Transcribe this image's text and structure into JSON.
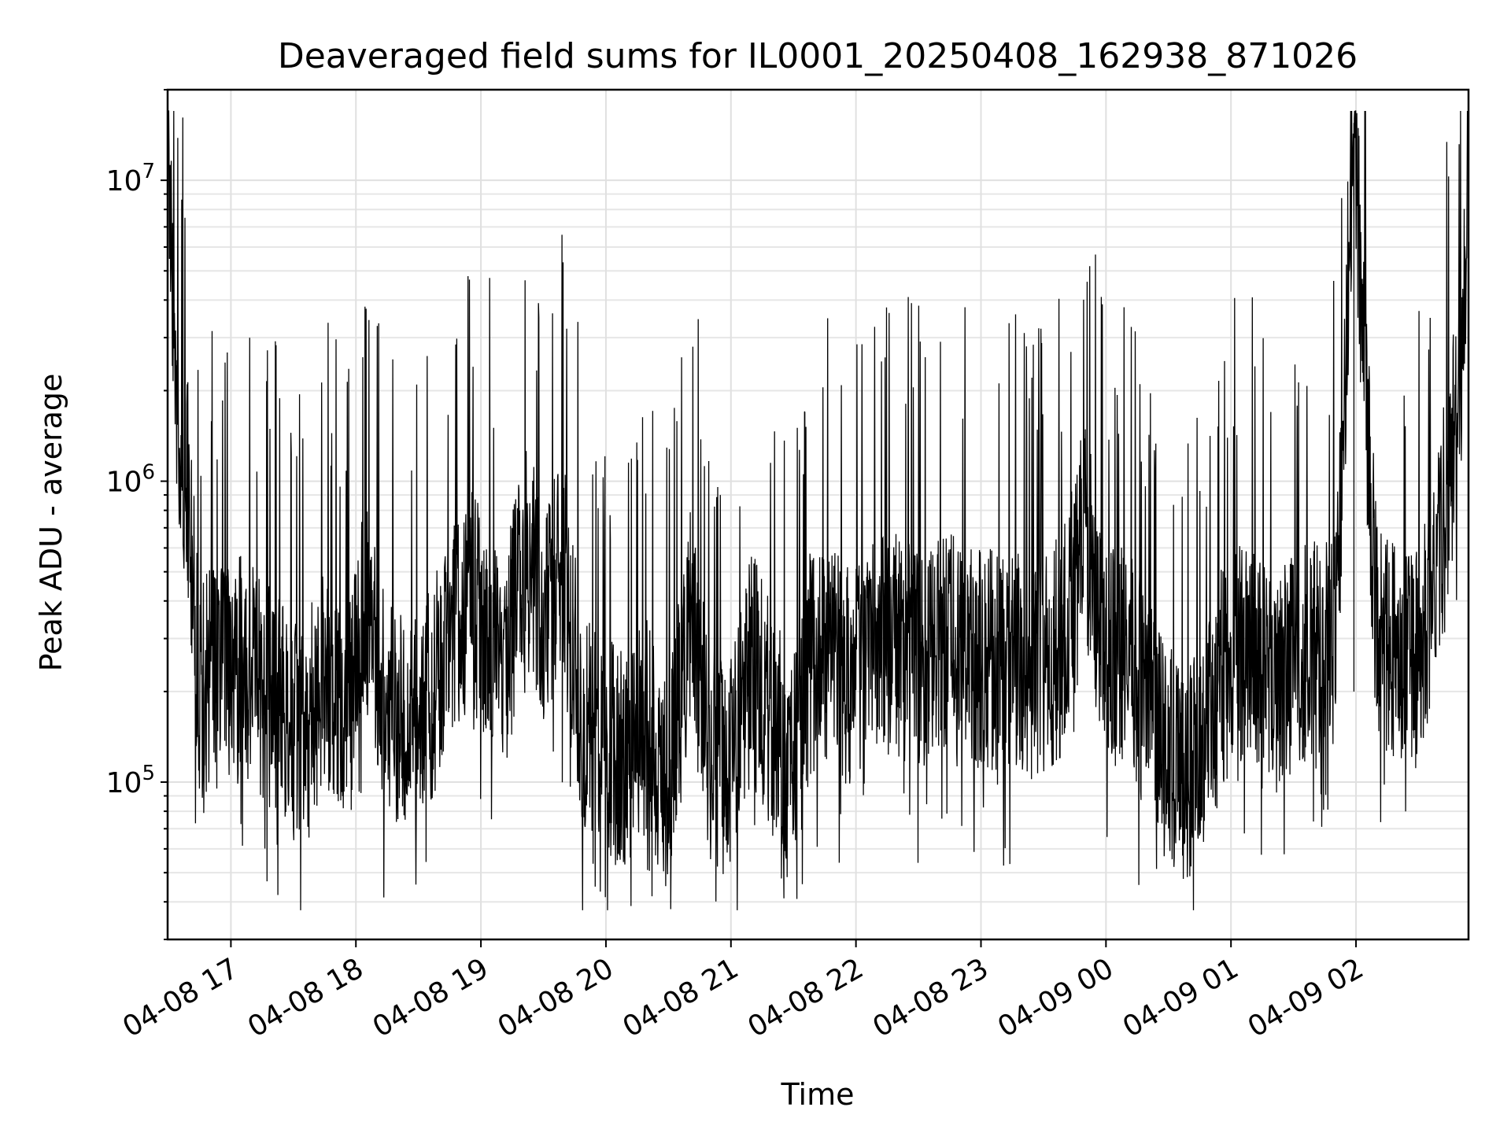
{
  "chart_data": {
    "type": "line",
    "title": "Deaveraged field sums for IL0001_20250408_162938_871026",
    "xlabel": "Time",
    "ylabel": "Peak ADU - average",
    "yscale": "log",
    "xlim": [
      "2025-04-08 16:29:38",
      "2025-04-09 02:54:00"
    ],
    "ylim": [
      30000,
      20000000
    ],
    "grid": true,
    "grid_minor": true,
    "line_color": "#000000",
    "x_ticks": [
      "2025-04-08 17:00",
      "2025-04-08 18:00",
      "2025-04-08 19:00",
      "2025-04-08 20:00",
      "2025-04-08 21:00",
      "2025-04-08 22:00",
      "2025-04-08 23:00",
      "2025-04-09 00:00",
      "2025-04-09 01:00",
      "2025-04-09 02:00"
    ],
    "x_tick_labels": [
      "04-08 17",
      "04-08 18",
      "04-08 19",
      "04-08 20",
      "04-08 21",
      "04-08 22",
      "04-08 23",
      "04-09 00",
      "04-09 01",
      "04-09 02"
    ],
    "y_ticks": [
      100000,
      1000000,
      10000000
    ],
    "y_tick_base": "10",
    "y_tick_exponents": [
      "5",
      "6",
      "7"
    ],
    "series": [
      {
        "x": [
          "2025-04-08 16:29:38",
          "2025-04-08 16:34",
          "2025-04-08 16:39",
          "2025-04-08 16:45",
          "2025-04-08 16:55",
          "2025-04-08 17:05",
          "2025-04-08 17:15",
          "2025-04-08 17:25",
          "2025-04-08 17:35",
          "2025-04-08 17:45",
          "2025-04-08 17:52",
          "2025-04-08 17:58",
          "2025-04-08 18:05",
          "2025-04-08 18:15",
          "2025-04-08 18:25",
          "2025-04-08 18:35",
          "2025-04-08 18:45",
          "2025-04-08 18:55",
          "2025-04-08 19:05",
          "2025-04-08 19:12",
          "2025-04-08 19:20",
          "2025-04-08 19:30",
          "2025-04-08 19:40",
          "2025-04-08 19:50",
          "2025-04-08 20:00",
          "2025-04-08 20:10",
          "2025-04-08 20:20",
          "2025-04-08 20:30",
          "2025-04-08 20:40",
          "2025-04-08 20:50",
          "2025-04-08 21:00",
          "2025-04-08 21:10",
          "2025-04-08 21:20",
          "2025-04-08 21:30",
          "2025-04-08 21:40",
          "2025-04-08 21:50",
          "2025-04-08 22:00",
          "2025-04-08 22:10",
          "2025-04-08 22:20",
          "2025-04-08 22:30",
          "2025-04-08 22:40",
          "2025-04-08 22:50",
          "2025-04-08 23:00",
          "2025-04-08 23:10",
          "2025-04-08 23:20",
          "2025-04-08 23:30",
          "2025-04-08 23:40",
          "2025-04-08 23:50",
          "2025-04-09 00:00",
          "2025-04-09 00:10",
          "2025-04-09 00:20",
          "2025-04-09 00:30",
          "2025-04-09 00:40",
          "2025-04-09 00:50",
          "2025-04-09 01:00",
          "2025-04-09 01:10",
          "2025-04-09 01:20",
          "2025-04-09 01:30",
          "2025-04-09 01:40",
          "2025-04-09 01:50",
          "2025-04-09 01:59",
          "2025-04-09 02:10",
          "2025-04-09 02:20",
          "2025-04-09 02:30",
          "2025-04-09 02:40",
          "2025-04-09 02:50",
          "2025-04-09 02:54"
        ],
        "y": [
          13000000,
          1500000,
          1000000,
          200000,
          230000,
          250000,
          200000,
          180000,
          150000,
          230000,
          180000,
          190000,
          400000,
          180000,
          160000,
          180000,
          320000,
          400000,
          300000,
          250000,
          600000,
          400000,
          500000,
          150000,
          130000,
          120000,
          150000,
          100000,
          350000,
          130000,
          110000,
          250000,
          160000,
          110000,
          300000,
          250000,
          220000,
          300000,
          280000,
          250000,
          280000,
          300000,
          250000,
          260000,
          240000,
          230000,
          300000,
          700000,
          250000,
          280000,
          170000,
          120000,
          100000,
          180000,
          250000,
          300000,
          200000,
          250000,
          280000,
          300000,
          15500000,
          300000,
          280000,
          250000,
          600000,
          2000000,
          11000000
        ]
      }
    ]
  }
}
